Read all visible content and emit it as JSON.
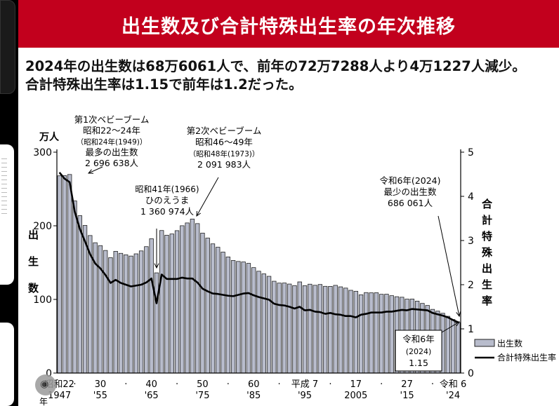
{
  "banner": {
    "title": "出生数及び合計特殊出生率の年次推移"
  },
  "headline": {
    "line1": "2024年の出生数は68万6061人で、前年の72万7288人より4万1227人減少。",
    "line2": "合計特殊出生率は1.15で前年は1.2だった。"
  },
  "chart_data": {
    "type": "bar",
    "title": "",
    "y_left_unit": "万人",
    "y_left_label": [
      "出",
      "生",
      "数"
    ],
    "y_left_ticks": [
      0,
      100,
      200,
      300
    ],
    "y_left_range": [
      0,
      300
    ],
    "y_right_label": [
      "合",
      "計",
      "特",
      "殊",
      "出",
      "生",
      "率"
    ],
    "y_right_ticks": [
      0,
      1,
      2,
      3,
      4,
      5
    ],
    "y_right_range": [
      0,
      5
    ],
    "x_tick_labels": [
      {
        "year": 1947,
        "top": "昭和22",
        "bottom": "1947"
      },
      {
        "year": 1950,
        "top": "·",
        "bottom": ""
      },
      {
        "year": 1955,
        "top": "30",
        "bottom": "'55"
      },
      {
        "year": 1960,
        "top": "·",
        "bottom": ""
      },
      {
        "year": 1965,
        "top": "40",
        "bottom": "'65"
      },
      {
        "year": 1970,
        "top": "·",
        "bottom": ""
      },
      {
        "year": 1975,
        "top": "50",
        "bottom": "'75"
      },
      {
        "year": 1980,
        "top": "·",
        "bottom": ""
      },
      {
        "year": 1985,
        "top": "60",
        "bottom": "'85"
      },
      {
        "year": 1990,
        "top": "·",
        "bottom": ""
      },
      {
        "year": 1995,
        "top": "平成 7",
        "bottom": "'95"
      },
      {
        "year": 2000,
        "top": "·",
        "bottom": ""
      },
      {
        "year": 2005,
        "top": "17",
        "bottom": "2005"
      },
      {
        "year": 2010,
        "top": "·",
        "bottom": ""
      },
      {
        "year": 2015,
        "top": "27",
        "bottom": "'15"
      },
      {
        "year": 2020,
        "top": "·",
        "bottom": ""
      },
      {
        "year": 2024,
        "top": "令和 6",
        "bottom": "'24"
      }
    ],
    "x_axis_year_char": "年",
    "legend": {
      "placement": "bottom-right",
      "births": "出生数",
      "tfr": "合計特殊出生率"
    },
    "colors": {
      "bar_fill": "#b8bccc",
      "bar_stroke": "#222222",
      "line": "#000000",
      "banner": "#c2001d"
    },
    "series": [
      {
        "name": "出生数",
        "unit": "万人",
        "years_start": 1947,
        "values": [
          267.9,
          268.2,
          269.7,
          233.8,
          213.8,
          200.5,
          186.8,
          177.0,
          173.1,
          166.5,
          156.7,
          165.3,
          162.6,
          160.6,
          158.9,
          161.9,
          165.9,
          171.7,
          182.4,
          136.1,
          193.6,
          187.2,
          188.9,
          193.4,
          200.1,
          203.9,
          209.2,
          203.0,
          190.1,
          183.3,
          175.5,
          170.9,
          164.3,
          157.7,
          152.9,
          151.6,
          150.9,
          149.0,
          143.2,
          138.3,
          134.7,
          131.4,
          124.7,
          122.2,
          122.3,
          120.9,
          118.8,
          123.8,
          118.7,
          120.7,
          119.2,
          120.3,
          117.8,
          117.7,
          119.1,
          117.1,
          115.4,
          112.4,
          111.1,
          106.3,
          109.3,
          109.0,
          109.1,
          107.0,
          107.1,
          105.1,
          103.7,
          103.0,
          100.4,
          100.5,
          97.7,
          94.6,
          91.8,
          86.5,
          84.1,
          81.2,
          77.1,
          72.7,
          68.6
        ]
      },
      {
        "name": "合計特殊出生率",
        "years_start": 1947,
        "values": [
          4.54,
          4.4,
          4.32,
          3.65,
          3.26,
          2.98,
          2.69,
          2.48,
          2.37,
          2.22,
          2.04,
          2.11,
          2.04,
          2.0,
          1.96,
          1.98,
          2.0,
          2.05,
          2.14,
          1.58,
          2.23,
          2.13,
          2.13,
          2.13,
          2.16,
          2.14,
          2.14,
          2.05,
          1.91,
          1.85,
          1.8,
          1.79,
          1.77,
          1.75,
          1.74,
          1.77,
          1.8,
          1.81,
          1.76,
          1.72,
          1.69,
          1.66,
          1.57,
          1.54,
          1.53,
          1.5,
          1.46,
          1.5,
          1.42,
          1.43,
          1.39,
          1.38,
          1.34,
          1.36,
          1.33,
          1.32,
          1.29,
          1.29,
          1.26,
          1.32,
          1.34,
          1.37,
          1.37,
          1.37,
          1.39,
          1.39,
          1.41,
          1.43,
          1.42,
          1.45,
          1.44,
          1.43,
          1.42,
          1.36,
          1.33,
          1.3,
          1.26,
          1.2,
          1.15
        ]
      }
    ],
    "annotations": [
      {
        "id": "boom1",
        "lines": [
          "第1次ベビーブーム",
          "昭和22～24年",
          "（昭和24年(1949)）",
          "最多の出生数",
          "2 696 638人"
        ]
      },
      {
        "id": "hinoeuma",
        "lines": [
          "昭和41年(1966)",
          "ひのえうま",
          "1 360 974人"
        ]
      },
      {
        "id": "boom2",
        "lines": [
          "第2次ベビーブーム",
          "昭和46～49年",
          "（昭和48年(1973)）",
          "2 091 983人"
        ]
      },
      {
        "id": "min",
        "lines": [
          "令和6年(2024)",
          "最少の出生数",
          "686 061人"
        ]
      },
      {
        "id": "tfr2024",
        "lines": [
          "令和6年",
          "(2024)",
          "1.15"
        ]
      }
    ]
  }
}
